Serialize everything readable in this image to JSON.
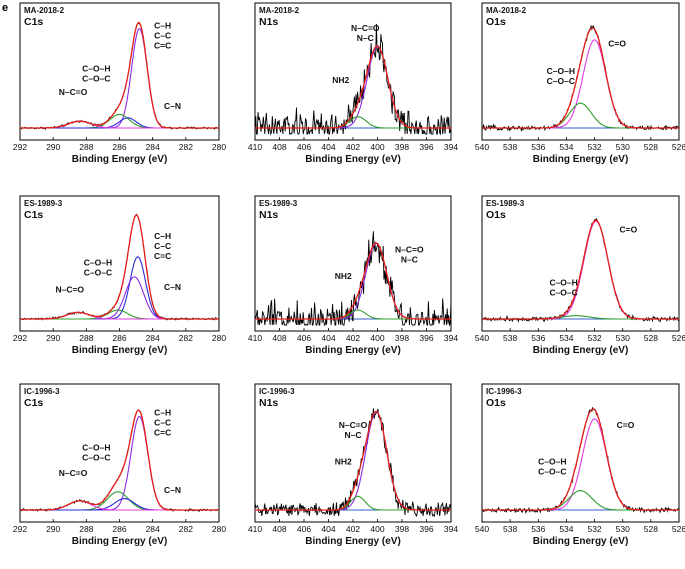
{
  "figure": {
    "panel_letter": "e"
  },
  "colors": {
    "frame": "#000000",
    "raw": "#000000",
    "envelope": "#e8201a",
    "blue": "#2a2ad8",
    "purple": "#8a2be2",
    "green": "#2e9e2e",
    "magenta": "#e23be2",
    "baseline": "#3060c8"
  },
  "chart_data": [
    {
      "type": "line",
      "id": "ma-c1s",
      "sample": "MA-2018-2",
      "element": "C1s",
      "xlabel": "Binding Energy (eV)",
      "xlim": [
        292,
        280
      ],
      "ticks": [
        292,
        290,
        288,
        286,
        284,
        282,
        280
      ],
      "ymax": 1.0,
      "noise": 0.006,
      "peaks": [
        {
          "id": "c-h",
          "center": 284.8,
          "fwhm": 1.1,
          "height": 0.88,
          "color": "purple"
        },
        {
          "id": "c-o",
          "center": 286.0,
          "fwhm": 1.4,
          "height": 0.12,
          "color": "green"
        },
        {
          "id": "c-n",
          "center": 285.5,
          "fwhm": 1.2,
          "height": 0.09,
          "color": "blue"
        },
        {
          "id": "n-c-o",
          "center": 288.4,
          "fwhm": 1.6,
          "height": 0.06,
          "color": "magenta"
        }
      ],
      "labels": [
        {
          "lines": [
            "C–H",
            "C–C",
            "C=C"
          ],
          "x": 283.4,
          "y": 0.88
        },
        {
          "lines": [
            "C–O–H",
            "C–O–C"
          ],
          "x": 287.4,
          "y": 0.5
        },
        {
          "lines": [
            "N–C=O"
          ],
          "x": 288.8,
          "y": 0.29
        },
        {
          "lines": [
            "C–N"
          ],
          "x": 282.8,
          "y": 0.17
        }
      ]
    },
    {
      "type": "line",
      "id": "ma-n1s",
      "sample": "MA-2018-2",
      "element": "N1s",
      "xlabel": "Binding Energy (eV)",
      "xlim": [
        410,
        394
      ],
      "ticks": [
        410,
        408,
        406,
        404,
        402,
        400,
        398,
        396,
        394
      ],
      "ymax": 1.0,
      "noise": 0.09,
      "peaks": [
        {
          "id": "n-c",
          "center": 400.0,
          "fwhm": 2.0,
          "height": 0.72,
          "color": "purple"
        },
        {
          "id": "nh2",
          "center": 401.6,
          "fwhm": 1.6,
          "height": 0.1,
          "color": "green"
        }
      ],
      "labels": [
        {
          "lines": [
            "N–C=O",
            "N–C"
          ],
          "x": 401.0,
          "y": 0.86
        },
        {
          "lines": [
            "NH2"
          ],
          "x": 403.0,
          "y": 0.4
        }
      ]
    },
    {
      "type": "line",
      "id": "ma-o1s",
      "sample": "MA-2018-2",
      "element": "O1s",
      "xlabel": "Binding Energy (eV)",
      "xlim": [
        540,
        526
      ],
      "ticks": [
        540,
        538,
        536,
        534,
        532,
        530,
        528,
        526
      ],
      "ymax": 1.0,
      "noise": 0.012,
      "peaks": [
        {
          "id": "c-eq-o",
          "center": 532.0,
          "fwhm": 1.9,
          "height": 0.78,
          "color": "magenta"
        },
        {
          "id": "c-o-h",
          "center": 533.0,
          "fwhm": 1.8,
          "height": 0.22,
          "color": "green"
        }
      ],
      "labels": [
        {
          "lines": [
            "C=O"
          ],
          "x": 530.4,
          "y": 0.72
        },
        {
          "lines": [
            "C–O–H",
            "C–O–C"
          ],
          "x": 534.4,
          "y": 0.48
        }
      ]
    },
    {
      "type": "line",
      "id": "es-c1s",
      "sample": "ES-1989-3",
      "element": "C1s",
      "xlabel": "Binding Energy (eV)",
      "xlim": [
        292,
        280
      ],
      "ticks": [
        292,
        290,
        288,
        286,
        284,
        282,
        280
      ],
      "ymax": 1.0,
      "noise": 0.006,
      "peaks": [
        {
          "id": "c-h",
          "center": 284.9,
          "fwhm": 1.1,
          "height": 0.56,
          "color": "blue"
        },
        {
          "id": "c-n",
          "center": 285.1,
          "fwhm": 1.3,
          "height": 0.38,
          "color": "purple"
        },
        {
          "id": "c-o",
          "center": 286.1,
          "fwhm": 1.4,
          "height": 0.08,
          "color": "green"
        },
        {
          "id": "n-c-o",
          "center": 288.5,
          "fwhm": 1.6,
          "height": 0.06,
          "color": "magenta"
        }
      ],
      "labels": [
        {
          "lines": [
            "C–H",
            "C–C",
            "C=C"
          ],
          "x": 283.4,
          "y": 0.72
        },
        {
          "lines": [
            "C–O–H",
            "C–O–C"
          ],
          "x": 287.3,
          "y": 0.48
        },
        {
          "lines": [
            "N–C=O"
          ],
          "x": 289.0,
          "y": 0.24
        },
        {
          "lines": [
            "C–N"
          ],
          "x": 282.8,
          "y": 0.26
        }
      ]
    },
    {
      "type": "line",
      "id": "es-n1s",
      "sample": "ES-1989-3",
      "element": "N1s",
      "xlabel": "Binding Energy (eV)",
      "xlim": [
        410,
        394
      ],
      "ticks": [
        410,
        408,
        406,
        404,
        402,
        400,
        398,
        396,
        394
      ],
      "ymax": 1.0,
      "noise": 0.1,
      "peaks": [
        {
          "id": "n-c",
          "center": 400.1,
          "fwhm": 2.0,
          "height": 0.68,
          "color": "purple"
        },
        {
          "id": "nh2",
          "center": 401.6,
          "fwhm": 1.5,
          "height": 0.08,
          "color": "green"
        }
      ],
      "labels": [
        {
          "lines": [
            "N–C=O",
            "N–C"
          ],
          "x": 397.4,
          "y": 0.6
        },
        {
          "lines": [
            "NH2"
          ],
          "x": 402.8,
          "y": 0.36
        }
      ]
    },
    {
      "type": "line",
      "id": "es-o1s",
      "sample": "ES-1989-3",
      "element": "O1s",
      "xlabel": "Binding Energy (eV)",
      "xlim": [
        540,
        526
      ],
      "ticks": [
        540,
        538,
        536,
        534,
        532,
        530,
        528,
        526
      ],
      "ymax": 1.0,
      "noise": 0.012,
      "peaks": [
        {
          "id": "c-eq-o",
          "center": 531.9,
          "fwhm": 2.0,
          "height": 0.88,
          "color": "magenta"
        },
        {
          "id": "c-o-h",
          "center": 533.3,
          "fwhm": 2.2,
          "height": 0.03,
          "color": "green"
        }
      ],
      "labels": [
        {
          "lines": [
            "C=O"
          ],
          "x": 529.6,
          "y": 0.78
        },
        {
          "lines": [
            "C–O–H",
            "C–O–C"
          ],
          "x": 534.2,
          "y": 0.3
        }
      ]
    },
    {
      "type": "line",
      "id": "ic-c1s",
      "sample": "IC-1996-3",
      "element": "C1s",
      "xlabel": "Binding Energy (eV)",
      "xlim": [
        292,
        280
      ],
      "ticks": [
        292,
        290,
        288,
        286,
        284,
        282,
        280
      ],
      "ymax": 1.0,
      "noise": 0.006,
      "peaks": [
        {
          "id": "c-h",
          "center": 284.8,
          "fwhm": 1.2,
          "height": 0.82,
          "color": "purple"
        },
        {
          "id": "c-o",
          "center": 286.1,
          "fwhm": 1.5,
          "height": 0.16,
          "color": "green"
        },
        {
          "id": "c-n",
          "center": 285.7,
          "fwhm": 1.4,
          "height": 0.1,
          "color": "blue"
        },
        {
          "id": "n-c-o",
          "center": 288.4,
          "fwhm": 1.6,
          "height": 0.08,
          "color": "magenta"
        }
      ],
      "labels": [
        {
          "lines": [
            "C–H",
            "C–C",
            "C=C"
          ],
          "x": 283.4,
          "y": 0.83
        },
        {
          "lines": [
            "C–O–H",
            "C–O–C"
          ],
          "x": 287.4,
          "y": 0.52
        },
        {
          "lines": [
            "N–C=O"
          ],
          "x": 288.8,
          "y": 0.3
        },
        {
          "lines": [
            "C–N"
          ],
          "x": 282.8,
          "y": 0.15
        }
      ]
    },
    {
      "type": "line",
      "id": "ic-n1s",
      "sample": "IC-1996-3",
      "element": "N1s",
      "xlabel": "Binding Energy (eV)",
      "xlim": [
        410,
        394
      ],
      "ticks": [
        410,
        408,
        406,
        404,
        402,
        400,
        398,
        396,
        394
      ],
      "ymax": 1.0,
      "noise": 0.045,
      "peaks": [
        {
          "id": "n-c",
          "center": 400.1,
          "fwhm": 2.0,
          "height": 0.86,
          "color": "purple"
        },
        {
          "id": "nh2",
          "center": 401.6,
          "fwhm": 1.4,
          "height": 0.12,
          "color": "green"
        }
      ],
      "labels": [
        {
          "lines": [
            "N–C=O",
            "N–C"
          ],
          "x": 402.0,
          "y": 0.72
        },
        {
          "lines": [
            "NH2"
          ],
          "x": 402.8,
          "y": 0.4
        }
      ]
    },
    {
      "type": "line",
      "id": "ic-o1s",
      "sample": "IC-1996-3",
      "element": "O1s",
      "xlabel": "Binding Energy (eV)",
      "xlim": [
        540,
        526
      ],
      "ticks": [
        540,
        538,
        536,
        534,
        532,
        530,
        528,
        526
      ],
      "ymax": 1.0,
      "noise": 0.012,
      "peaks": [
        {
          "id": "c-eq-o",
          "center": 532.0,
          "fwhm": 2.0,
          "height": 0.8,
          "color": "magenta"
        },
        {
          "id": "c-o-h",
          "center": 533.0,
          "fwhm": 1.9,
          "height": 0.17,
          "color": "green"
        }
      ],
      "labels": [
        {
          "lines": [
            "C=O"
          ],
          "x": 529.8,
          "y": 0.72
        },
        {
          "lines": [
            "C–O–H",
            "C–O–C"
          ],
          "x": 535.0,
          "y": 0.4
        }
      ]
    }
  ]
}
